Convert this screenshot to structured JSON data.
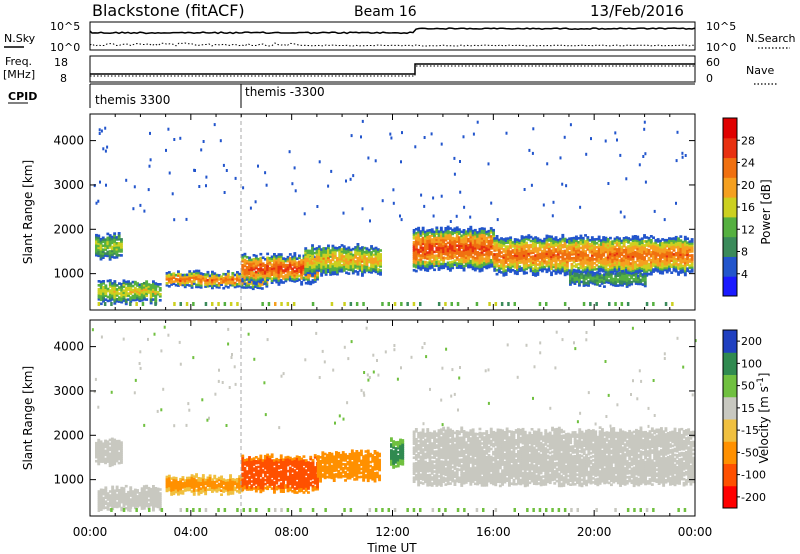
{
  "header": {
    "site": "Blackstone (fitACF)",
    "beam": "Beam 16",
    "date": "13/Feb/2016"
  },
  "noise_panel": {
    "left_label": "N.Sky",
    "right_label": "N.Search",
    "left_ticks": [
      "10^5",
      "10^0"
    ],
    "right_ticks": [
      "10^5",
      "10^0"
    ]
  },
  "freq_panel": {
    "left_label_1": "Freq.",
    "left_label_2": "[MHz]",
    "right_label": "Nave",
    "left_ticks": [
      "18",
      "8"
    ],
    "right_ticks": [
      "60",
      "0"
    ]
  },
  "cpid_panel": {
    "label": "CPID",
    "entries": [
      {
        "label": "themis 3300",
        "start_hour": 0
      },
      {
        "label": "themis -3300",
        "start_hour": 6
      }
    ]
  },
  "colors": {
    "power_scale": [
      "#1a1aff",
      "#2255cc",
      "#3a8a5a",
      "#55b040",
      "#ccd020",
      "#f5a020",
      "#f07010",
      "#e83010",
      "#e00000"
    ],
    "velocity_scale": [
      "#ff0000",
      "#ff5000",
      "#ff9000",
      "#f0c040",
      "#c8c8c0",
      "#70c040",
      "#308a50",
      "#2040c0"
    ]
  },
  "chart_data": [
    {
      "type": "heatmap",
      "name": "power",
      "xlabel": "",
      "ylabel": "Slant Range [km]",
      "yticks": [
        "1000",
        "2000",
        "3000",
        "4000"
      ],
      "xticks": [
        "00:00",
        "04:00",
        "08:00",
        "12:00",
        "16:00",
        "20:00",
        "00:00"
      ],
      "xlim": [
        0,
        24
      ],
      "ylim": [
        180,
        4600
      ],
      "colorbar_label": "Power [dB]",
      "colorbar_ticks": [
        "4",
        "8",
        "12",
        "16",
        "20",
        "24",
        "28"
      ],
      "colorbar_range": [
        0,
        32
      ],
      "bands": [
        {
          "t0": 0.2,
          "t1": 1.2,
          "r0": 1350,
          "r1": 1850,
          "value": 14
        },
        {
          "t0": 0.3,
          "t1": 2.8,
          "r0": 350,
          "r1": 800,
          "value": 16
        },
        {
          "t0": 3.0,
          "t1": 7.0,
          "r0": 700,
          "r1": 1000,
          "value": 22
        },
        {
          "t0": 6.0,
          "t1": 9.0,
          "r0": 800,
          "r1": 1400,
          "value": 24
        },
        {
          "t0": 8.5,
          "t1": 11.5,
          "r0": 1000,
          "r1": 1600,
          "value": 18
        },
        {
          "t0": 12.8,
          "t1": 16.0,
          "r0": 1100,
          "r1": 2000,
          "value": 24
        },
        {
          "t0": 16.0,
          "t1": 23.9,
          "r0": 1000,
          "r1": 1800,
          "value": 22
        },
        {
          "t0": 19.0,
          "t1": 22.0,
          "r0": 750,
          "r1": 1000,
          "value": 12
        }
      ]
    },
    {
      "type": "heatmap",
      "name": "velocity",
      "xlabel": "Time UT",
      "ylabel": "Slant Range [km]",
      "yticks": [
        "1000",
        "2000",
        "3000",
        "4000"
      ],
      "xticks": [
        "00:00",
        "04:00",
        "08:00",
        "12:00",
        "16:00",
        "20:00",
        "00:00"
      ],
      "xlim": [
        0,
        24
      ],
      "ylim": [
        180,
        4600
      ],
      "colorbar_label": "Velocity [m s^-1]",
      "colorbar_ticks": [
        "-200",
        "-100",
        "-50",
        "-15",
        "15",
        "50",
        "100",
        "200"
      ],
      "bands": [
        {
          "t0": 0.2,
          "t1": 1.2,
          "r0": 1350,
          "r1": 1850,
          "value": 0
        },
        {
          "t0": 0.3,
          "t1": 2.8,
          "r0": 350,
          "r1": 800,
          "value": 0
        },
        {
          "t0": 3.0,
          "t1": 6.0,
          "r0": 700,
          "r1": 1050,
          "value": -40
        },
        {
          "t0": 6.0,
          "t1": 9.0,
          "r0": 750,
          "r1": 1500,
          "value": -120
        },
        {
          "t0": 9.0,
          "t1": 11.5,
          "r0": 1000,
          "r1": 1600,
          "value": -60
        },
        {
          "t0": 11.9,
          "t1": 12.4,
          "r0": 1300,
          "r1": 1900,
          "value": 40
        },
        {
          "t0": 12.8,
          "t1": 23.9,
          "r0": 900,
          "r1": 2100,
          "value": 0
        }
      ]
    }
  ]
}
